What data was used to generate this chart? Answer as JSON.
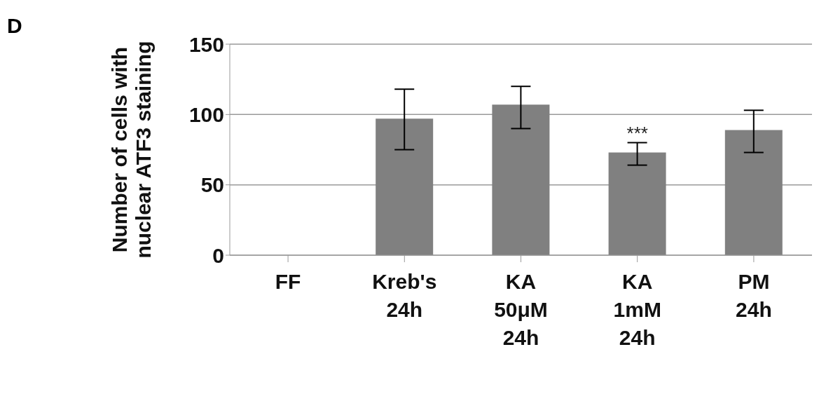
{
  "chart_data": {
    "type": "bar",
    "ylabel": "Number of cells with nuclear ATF3 staining",
    "categories": [
      "FF",
      "Kreb's 24h",
      "KA 50μM 24h",
      "KA 1mM 24h",
      "PM 24h"
    ],
    "values": [
      null,
      97,
      107,
      73,
      89
    ],
    "errors": [
      null,
      [
        75,
        118
      ],
      [
        90,
        120
      ],
      [
        64,
        80
      ],
      [
        73,
        103
      ]
    ],
    "color": "#808080",
    "ylim": [
      0,
      150
    ],
    "yticks": [
      0,
      50,
      100,
      150
    ],
    "grid": "y",
    "annotations": [
      "D",
      {
        "text": "***",
        "x": "KA 1mM 24h",
        "y": 82
      }
    ]
  }
}
